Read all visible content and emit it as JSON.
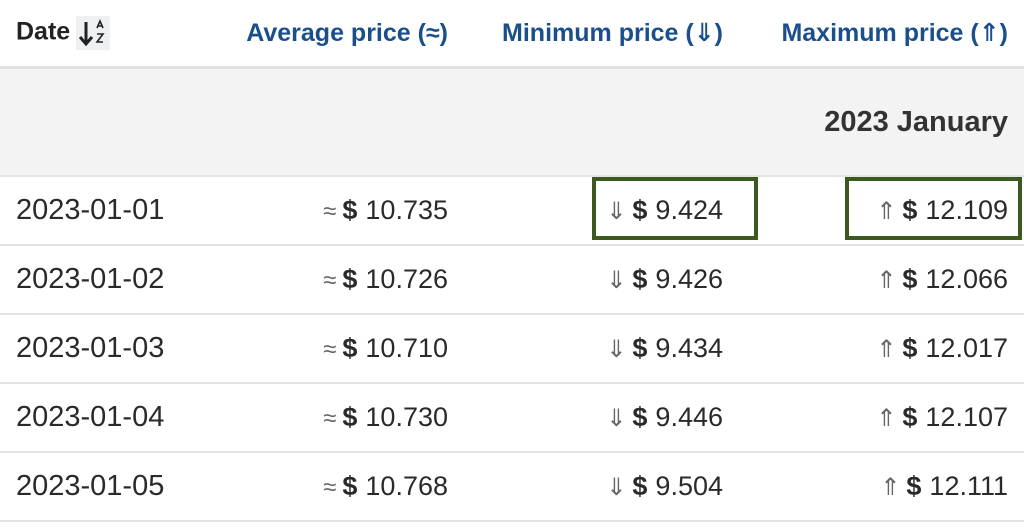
{
  "table": {
    "header": [
      "Date",
      "Average price (≈)",
      "Minimum price (⇓)",
      "Maximum price (⇑)"
    ],
    "group": "2023 January",
    "symbols": {
      "avg": "≈",
      "min": "⇓",
      "max": "⇑",
      "currency": "$"
    },
    "rows": [
      [
        "2023-01-01",
        "10.735",
        "9.424",
        "12.109"
      ],
      [
        "2023-01-02",
        "10.726",
        "9.426",
        "12.066"
      ],
      [
        "2023-01-03",
        "10.710",
        "9.434",
        "12.017"
      ],
      [
        "2023-01-04",
        "10.730",
        "9.446",
        "12.107"
      ],
      [
        "2023-01-05",
        "10.768",
        "9.504",
        "12.111"
      ]
    ]
  }
}
